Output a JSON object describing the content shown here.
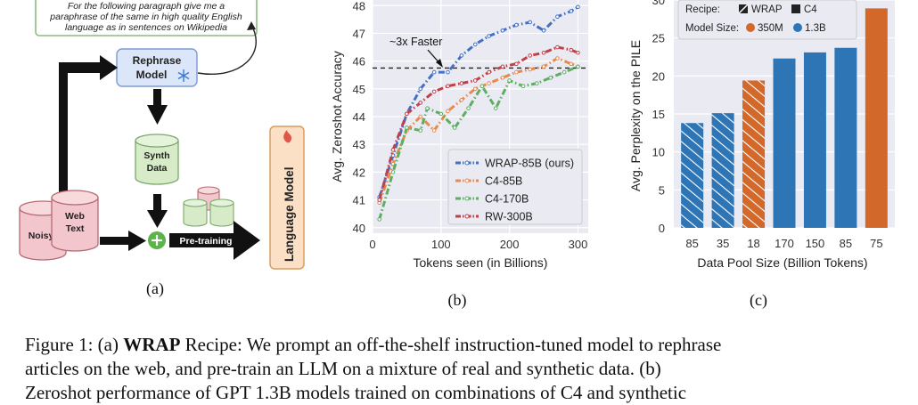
{
  "panel_a": {
    "prompt_text": [
      "For the following paragraph give me a",
      "paraphrase of the same in high quality English",
      "language as in sentences on Wikipedia"
    ],
    "rephrase_label": [
      "Rephrase",
      "Model"
    ],
    "synth_label": [
      "Synth",
      "Data"
    ],
    "noisy_label": "Noisy",
    "web_label": [
      "Web",
      "Text"
    ],
    "pretrain_label": "Pre-training",
    "lm_label": "Language Model",
    "sublabel": "(a)",
    "colors": {
      "prompt_border": "#8fb985",
      "rephrase_fill": "#dbe6f8",
      "synth_fill": "#d7ebc9",
      "cyl_fill": "#f2c6cc",
      "lm_fill": "#fbe0c5"
    }
  },
  "panel_b": {
    "sublabel": "(b)",
    "annotation": "~3x Faster",
    "chart_data": {
      "type": "line",
      "xlabel": "Tokens seen (in Billions)",
      "ylabel": "Avg. Zeroshot Accuracy",
      "xlim": [
        0,
        315
      ],
      "ylim": [
        39.8,
        48.2
      ],
      "xticks": [
        0,
        100,
        200,
        300
      ],
      "yticks": [
        40,
        41,
        42,
        43,
        44,
        45,
        46,
        47,
        48
      ],
      "hline": 45.75,
      "grid": true,
      "legend_position": "bottom-right",
      "series": [
        {
          "name": "WRAP-85B (ours)",
          "color": "#4470c4",
          "points": [
            [
              10,
              41.1
            ],
            [
              30,
              42.6
            ],
            [
              50,
              44.1
            ],
            [
              70,
              45.0
            ],
            [
              90,
              45.6
            ],
            [
              110,
              45.6
            ],
            [
              130,
              46.2
            ],
            [
              150,
              46.6
            ],
            [
              170,
              46.9
            ],
            [
              190,
              47.1
            ],
            [
              210,
              47.3
            ],
            [
              230,
              47.4
            ],
            [
              250,
              47.1
            ],
            [
              270,
              47.6
            ],
            [
              290,
              47.8
            ],
            [
              300,
              47.95
            ]
          ]
        },
        {
          "name": "C4-85B",
          "color": "#e88a4e",
          "points": [
            [
              10,
              40.9
            ],
            [
              30,
              42.3
            ],
            [
              50,
              43.5
            ],
            [
              70,
              44.0
            ],
            [
              90,
              43.5
            ],
            [
              110,
              44.2
            ],
            [
              130,
              44.6
            ],
            [
              150,
              45.0
            ],
            [
              170,
              45.2
            ],
            [
              190,
              45.4
            ],
            [
              210,
              45.6
            ],
            [
              230,
              45.7
            ],
            [
              250,
              45.8
            ],
            [
              270,
              46.1
            ],
            [
              290,
              45.9
            ],
            [
              300,
              45.8
            ]
          ]
        },
        {
          "name": "C4-170B",
          "color": "#5dae63",
          "points": [
            [
              10,
              40.3
            ],
            [
              30,
              42.0
            ],
            [
              50,
              43.6
            ],
            [
              70,
              43.5
            ],
            [
              80,
              44.3
            ],
            [
              100,
              44.1
            ],
            [
              120,
              43.6
            ],
            [
              140,
              44.3
            ],
            [
              160,
              45.1
            ],
            [
              180,
              44.3
            ],
            [
              200,
              45.3
            ],
            [
              220,
              45.1
            ],
            [
              240,
              45.2
            ],
            [
              260,
              45.4
            ],
            [
              280,
              45.6
            ],
            [
              300,
              45.8
            ]
          ]
        },
        {
          "name": "RW-300B",
          "color": "#c0404a",
          "points": [
            [
              10,
              41.0
            ],
            [
              30,
              42.8
            ],
            [
              50,
              44.1
            ],
            [
              70,
              44.5
            ],
            [
              90,
              44.9
            ],
            [
              110,
              45.1
            ],
            [
              130,
              45.2
            ],
            [
              150,
              45.3
            ],
            [
              170,
              45.6
            ],
            [
              190,
              45.8
            ],
            [
              210,
              45.9
            ],
            [
              230,
              46.2
            ],
            [
              250,
              46.3
            ],
            [
              270,
              46.5
            ],
            [
              290,
              46.4
            ],
            [
              300,
              46.3
            ]
          ]
        }
      ]
    }
  },
  "panel_c": {
    "sublabel": "(c)",
    "chart_data": {
      "type": "bar",
      "xlabel": "Data Pool Size (Billion Tokens)",
      "ylabel": "Avg. Perplexity on the PILE",
      "ylim": [
        0,
        30
      ],
      "yticks": [
        0,
        5,
        10,
        15,
        20,
        25,
        30
      ],
      "grid": true,
      "categories": [
        "85",
        "35",
        "18",
        "170",
        "150",
        "85",
        "75"
      ],
      "values": [
        13.8,
        15.1,
        19.4,
        22.3,
        23.1,
        23.7,
        28.9
      ],
      "recipe": [
        "WRAP",
        "WRAP",
        "WRAP",
        "C4",
        "C4",
        "C4",
        "C4"
      ],
      "model_size": [
        "1.3B",
        "1.3B",
        "350M",
        "1.3B",
        "1.3B",
        "1.3B",
        "350M"
      ],
      "legend": {
        "recipe_label": "Recipe:",
        "recipes": [
          "WRAP",
          "C4"
        ],
        "size_label": "Model Size:",
        "sizes": [
          "350M",
          "1.3B"
        ]
      },
      "colors": {
        "350M": "#d2692b",
        "1.3B": "#2e75b6"
      }
    }
  },
  "caption": {
    "line1_pre": "Figure 1: (a) ",
    "line1_bold": "WRAP",
    "line1_post": " Recipe: We prompt an off-the-shelf instruction-tuned model to rephrase",
    "line2": "articles on the web, and pre-train an LLM on a mixture of real and synthetic data.   (b)",
    "line3": "Zeroshot performance of GPT 1.3B models trained on combinations of C4 and synthetic"
  }
}
